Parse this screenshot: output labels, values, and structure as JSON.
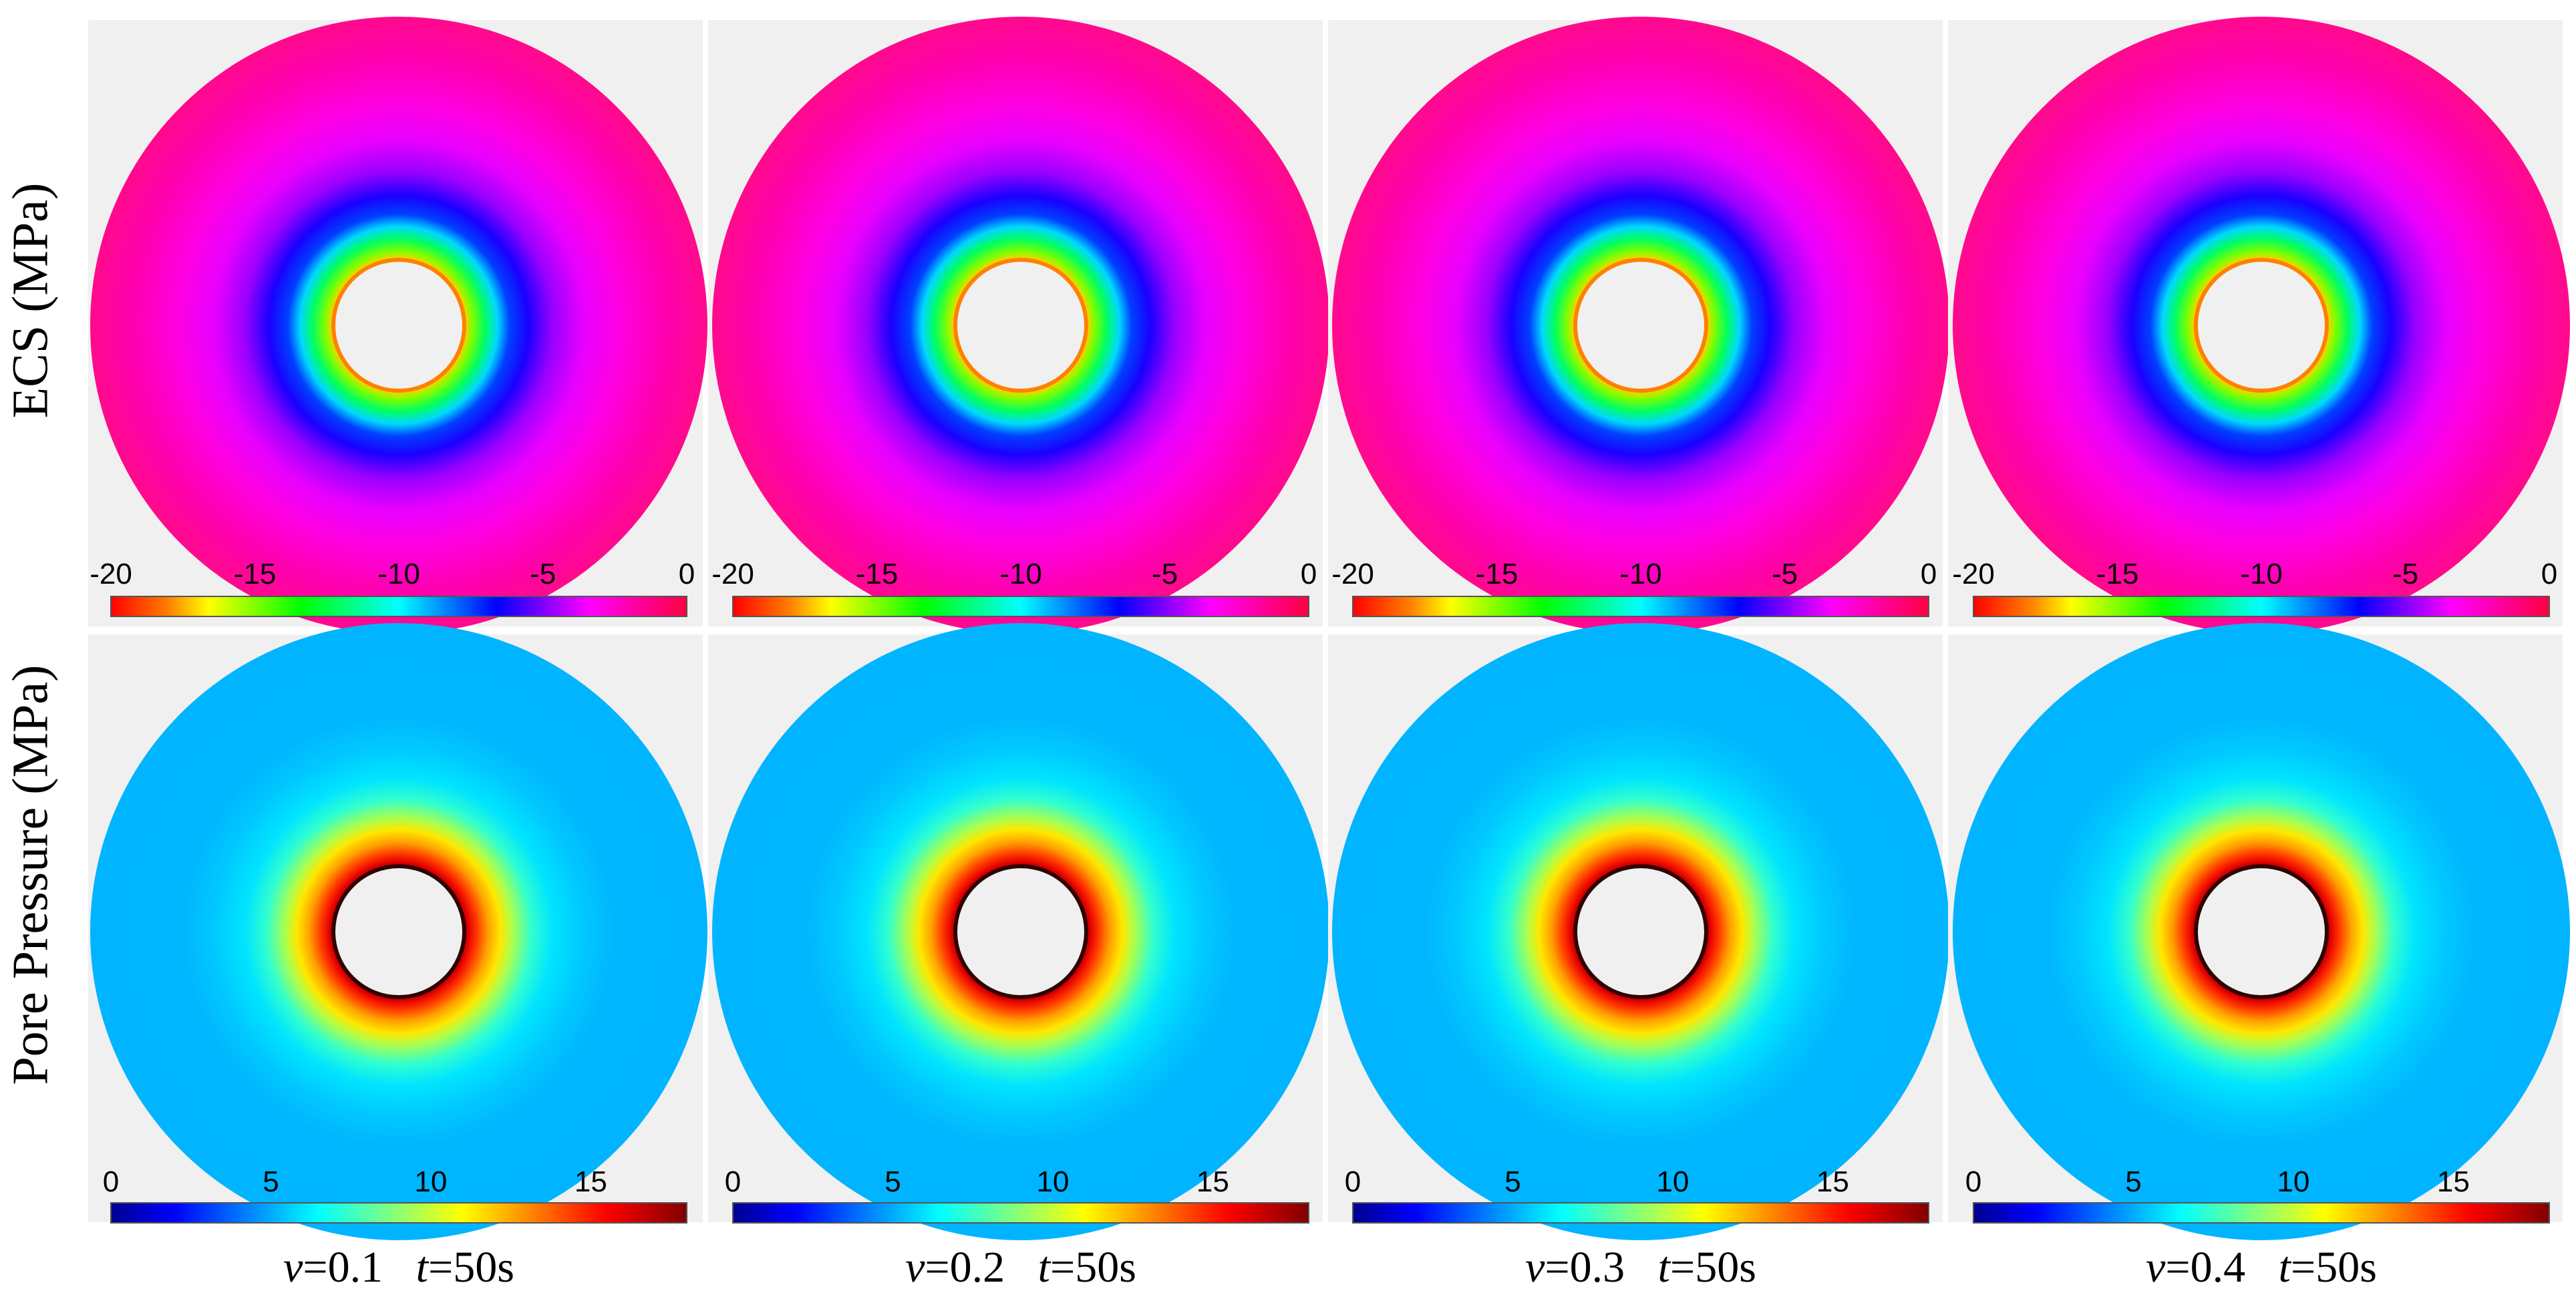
{
  "row_labels": [
    "ECS (MPa)",
    "Pore Pressure (MPa)"
  ],
  "colorbars": {
    "ecs": {
      "ticks": [
        "-20",
        "-15",
        "-10",
        "-5",
        "0"
      ],
      "range": [
        -20,
        0
      ],
      "colormap": "hsv-reverse"
    },
    "pore": {
      "ticks": [
        "0",
        "5",
        "10",
        "15"
      ],
      "range": [
        0,
        18
      ],
      "colormap": "jet"
    }
  },
  "columns": [
    {
      "nu_symbol": "v",
      "nu_value": "=0.1",
      "t_symbol": "t",
      "t_value": "=50s"
    },
    {
      "nu_symbol": "v",
      "nu_value": "=0.2",
      "t_symbol": "t",
      "t_value": "=50s"
    },
    {
      "nu_symbol": "v",
      "nu_value": "=0.3",
      "t_symbol": "t",
      "t_value": "=50s"
    },
    {
      "nu_symbol": "v",
      "nu_value": "=0.4",
      "t_symbol": "t",
      "t_value": "=50s"
    }
  ],
  "colors": {
    "panel_background": "#f0f0f0",
    "ecs_far_field": "#ff0a8c",
    "pore_far_field": "#00b4ff",
    "borehole": "#f0f0f0"
  }
}
